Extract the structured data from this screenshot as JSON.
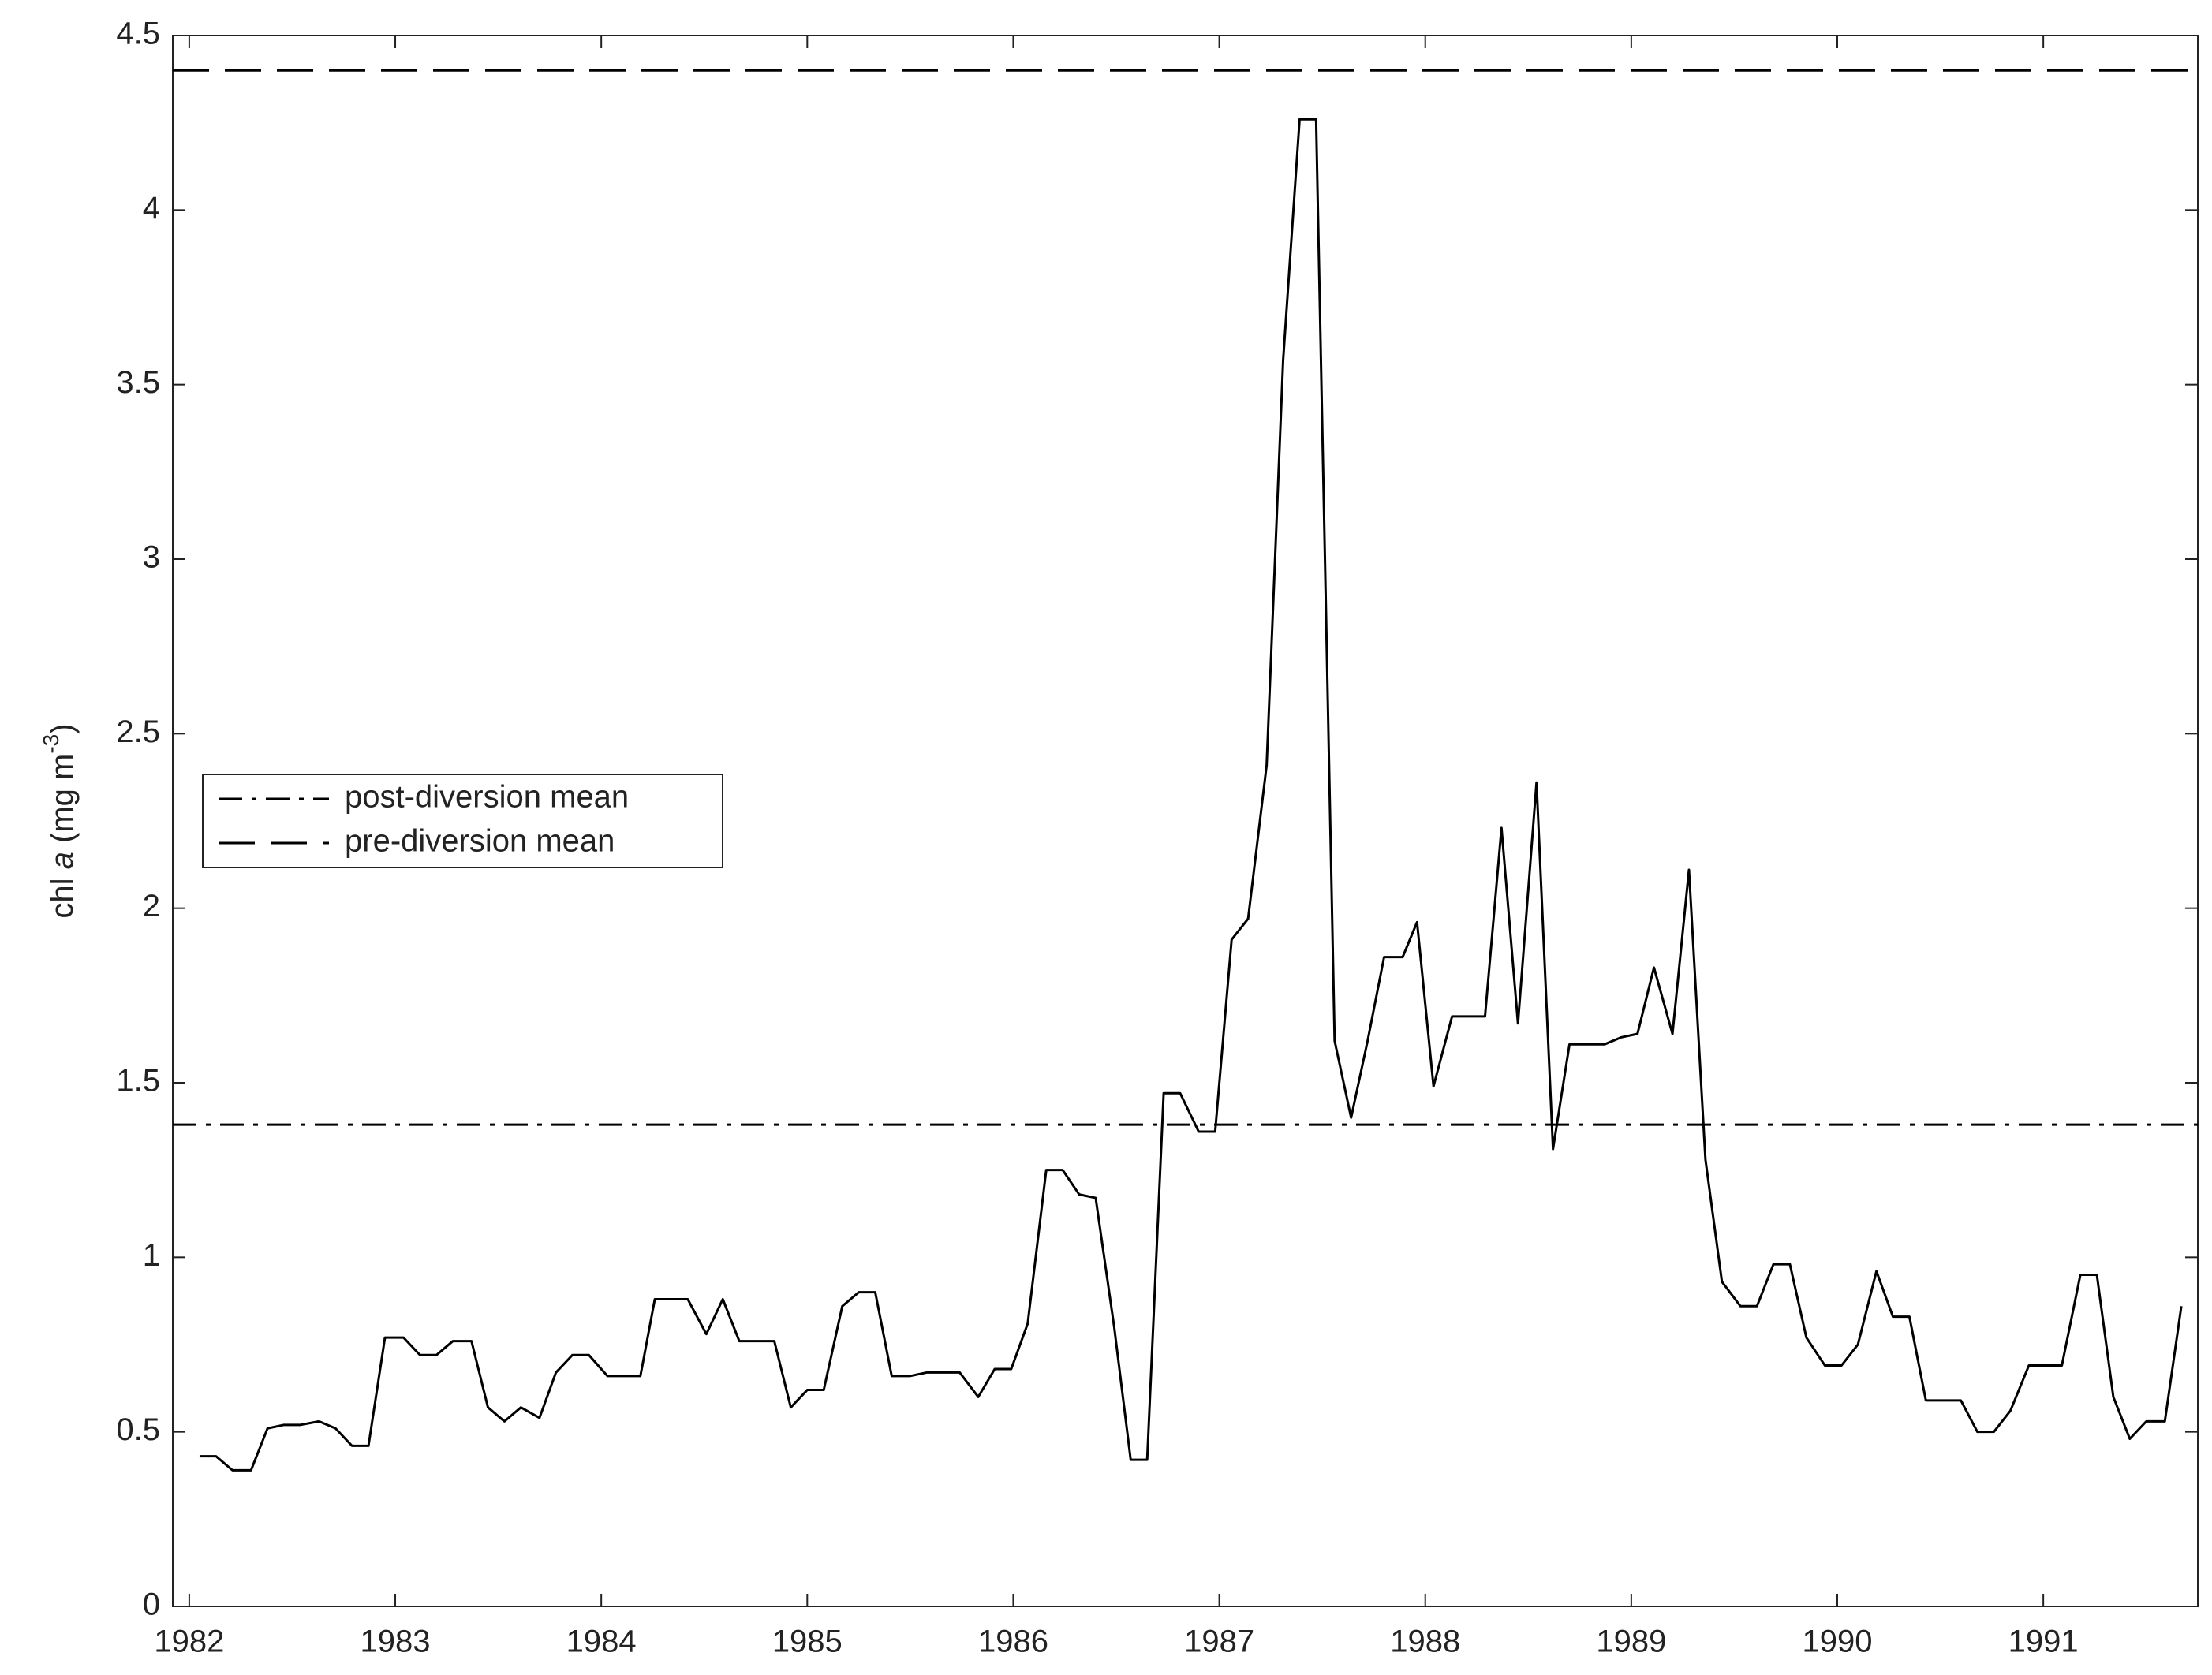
{
  "chart_data": {
    "type": "line",
    "ylabel": [
      "chl ",
      "a",
      " (mg m",
      "-3",
      ")"
    ],
    "xlim": [
      1981.92,
      1991.75
    ],
    "xticks": [
      1982,
      1983,
      1984,
      1985,
      1986,
      1987,
      1988,
      1989,
      1990,
      1991
    ],
    "ylim": [
      0,
      4.5
    ],
    "yticks": [
      0,
      0.5,
      1,
      1.5,
      2,
      2.5,
      3,
      3.5,
      4,
      4.5
    ],
    "grid": false,
    "legend": "center left",
    "series": [
      {
        "color": "#000000",
        "x": [
          1982.05,
          1982.13,
          1982.21,
          1982.3,
          1982.38,
          1982.46,
          1982.54,
          1982.63,
          1982.71,
          1982.79,
          1982.87,
          1982.95,
          1983.04,
          1983.12,
          1983.2,
          1983.28,
          1983.37,
          1983.45,
          1983.53,
          1983.61,
          1983.7,
          1983.78,
          1983.86,
          1983.94,
          1984.03,
          1984.11,
          1984.19,
          1984.26,
          1984.34,
          1984.42,
          1984.51,
          1984.59,
          1984.67,
          1984.75,
          1984.84,
          1984.92,
          1985.0,
          1985.08,
          1985.17,
          1985.25,
          1985.33,
          1985.41,
          1985.5,
          1985.58,
          1985.66,
          1985.74,
          1985.83,
          1985.91,
          1985.99,
          1986.07,
          1986.16,
          1986.24,
          1986.32,
          1986.4,
          1986.49,
          1986.57,
          1986.65,
          1986.73,
          1986.81,
          1986.9,
          1986.98,
          1987.06,
          1987.14,
          1987.23,
          1987.31,
          1987.39,
          1987.47,
          1987.56,
          1987.64,
          1987.72,
          1987.8,
          1987.89,
          1987.96,
          1988.04,
          1988.13,
          1988.21,
          1988.29,
          1988.37,
          1988.45,
          1988.54,
          1988.62,
          1988.7,
          1988.78,
          1988.87,
          1988.95,
          1989.03,
          1989.11,
          1989.2,
          1989.28,
          1989.36,
          1989.44,
          1989.53,
          1989.61,
          1989.69,
          1989.77,
          1989.85,
          1989.94,
          1990.02,
          1990.1,
          1990.19,
          1990.27,
          1990.35,
          1990.43,
          1990.52,
          1990.6,
          1990.68,
          1990.76,
          1990.84,
          1990.93,
          1991.01,
          1991.09,
          1991.18,
          1991.26,
          1991.34,
          1991.42,
          1991.5,
          1991.59,
          1991.67
        ],
        "values": [
          0.43,
          0.43,
          0.39,
          0.39,
          0.51,
          0.52,
          0.52,
          0.53,
          0.51,
          0.46,
          0.46,
          0.77,
          0.77,
          0.72,
          0.72,
          0.76,
          0.76,
          0.57,
          0.53,
          0.57,
          0.54,
          0.67,
          0.72,
          0.72,
          0.66,
          0.66,
          0.66,
          0.88,
          0.88,
          0.88,
          0.78,
          0.88,
          0.76,
          0.76,
          0.76,
          0.57,
          0.62,
          0.62,
          0.86,
          0.9,
          0.9,
          0.66,
          0.66,
          0.67,
          0.67,
          0.67,
          0.6,
          0.68,
          0.68,
          0.81,
          1.25,
          1.25,
          1.18,
          1.17,
          0.8,
          0.42,
          0.42,
          1.47,
          1.47,
          1.36,
          1.36,
          1.91,
          1.97,
          2.41,
          3.57,
          4.26,
          4.26,
          1.62,
          1.4,
          1.62,
          1.86,
          1.86,
          1.96,
          1.49,
          1.69,
          1.69,
          1.69,
          2.23,
          1.67,
          2.36,
          1.31,
          1.61,
          1.61,
          1.61,
          1.63,
          1.64,
          1.83,
          1.64,
          2.11,
          1.28,
          0.93,
          0.86,
          0.86,
          0.98,
          0.98,
          0.77,
          0.69,
          0.69,
          0.75,
          0.96,
          0.83,
          0.83,
          0.59,
          0.59,
          0.59,
          0.5,
          0.5,
          0.56,
          0.69,
          0.69,
          0.69,
          0.95,
          0.95,
          0.6,
          0.48,
          0.53,
          0.53,
          0.86
        ]
      }
    ],
    "hlines": [
      {
        "name": "post-diversion mean",
        "value": 1.38,
        "color": "#000000",
        "dash": "dashdot"
      },
      {
        "name": "pre-diversion mean",
        "value": 4.4,
        "color": "#000000",
        "dash": "dash"
      }
    ]
  }
}
